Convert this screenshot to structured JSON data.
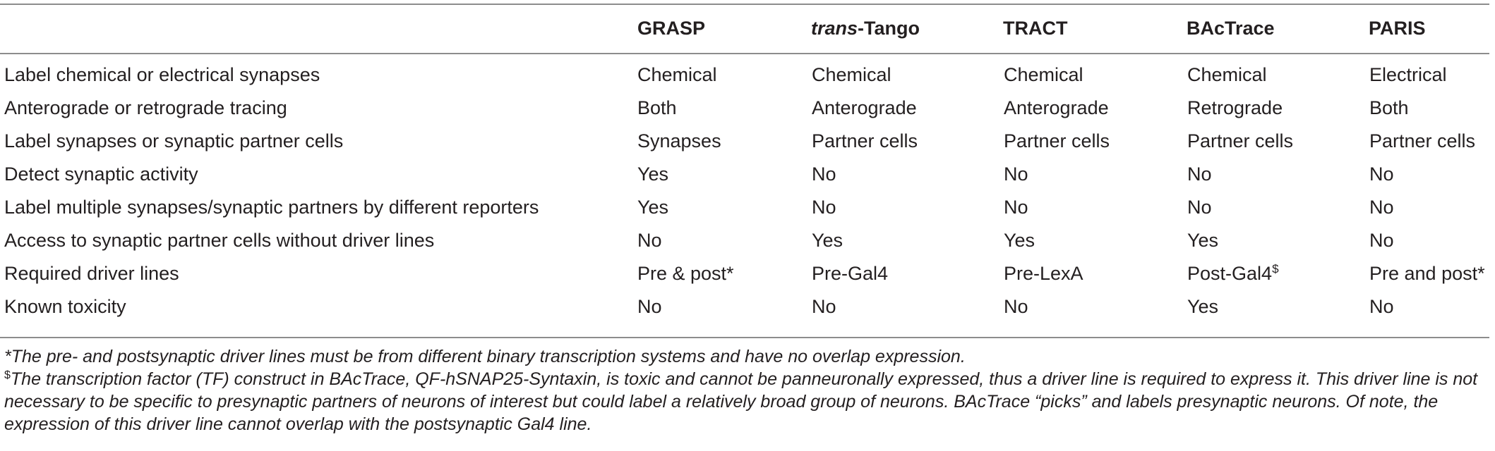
{
  "table": {
    "columns": [
      {
        "bold": "GRASP",
        "italic_prefix": "",
        "rest": ""
      },
      {
        "bold": "",
        "italic_prefix": "trans",
        "rest": "-Tango"
      },
      {
        "bold": "TRACT",
        "italic_prefix": "",
        "rest": ""
      },
      {
        "bold": "BAcTrace",
        "italic_prefix": "",
        "rest": ""
      },
      {
        "bold": "PARIS",
        "italic_prefix": "",
        "rest": ""
      }
    ],
    "rows": [
      {
        "label": "Label chemical or electrical synapses",
        "values": [
          "Chemical",
          "Chemical",
          "Chemical",
          "Chemical",
          "Electrical"
        ]
      },
      {
        "label": "Anterograde or retrograde tracing",
        "values": [
          "Both",
          "Anterograde",
          "Anterograde",
          "Retrograde",
          "Both"
        ]
      },
      {
        "label": "Label synapses or synaptic partner cells",
        "values": [
          "Synapses",
          "Partner cells",
          "Partner cells",
          "Partner cells",
          "Partner cells"
        ]
      },
      {
        "label": "Detect synaptic activity",
        "values": [
          "Yes",
          "No",
          "No",
          "No",
          "No"
        ]
      },
      {
        "label": "Label multiple synapses/synaptic partners by different reporters",
        "values": [
          "Yes",
          "No",
          "No",
          "No",
          "No"
        ]
      },
      {
        "label": "Access to synaptic partner cells without driver lines",
        "values": [
          "No",
          "Yes",
          "Yes",
          "Yes",
          "No"
        ]
      },
      {
        "label": "Required driver lines",
        "values": [
          "Pre & post*",
          "Pre-Gal4",
          "Pre-LexA",
          "Post-Gal4",
          "Pre and post*"
        ],
        "post_gal4_mark": "$"
      },
      {
        "label": "Known toxicity",
        "values": [
          "No",
          "No",
          "No",
          "Yes",
          "No"
        ]
      }
    ]
  },
  "footnotes": {
    "star": "*The pre- and postsynaptic driver lines must be from different binary transcription systems and have no overlap expression.",
    "dollar_mark": "$",
    "dollar_text": "The transcription factor (TF) construct in BAcTrace, QF-hSNAP25-Syntaxin, is toxic and cannot be panneuronally expressed, thus a driver line is required to express it. This driver line is not necessary to be specific to presynaptic partners of neurons of interest but could label a relatively broad group of neurons. BAcTrace “picks” and labels presynaptic neurons. Of note, the expression of this driver line cannot overlap with the postsynaptic Gal4 line."
  }
}
